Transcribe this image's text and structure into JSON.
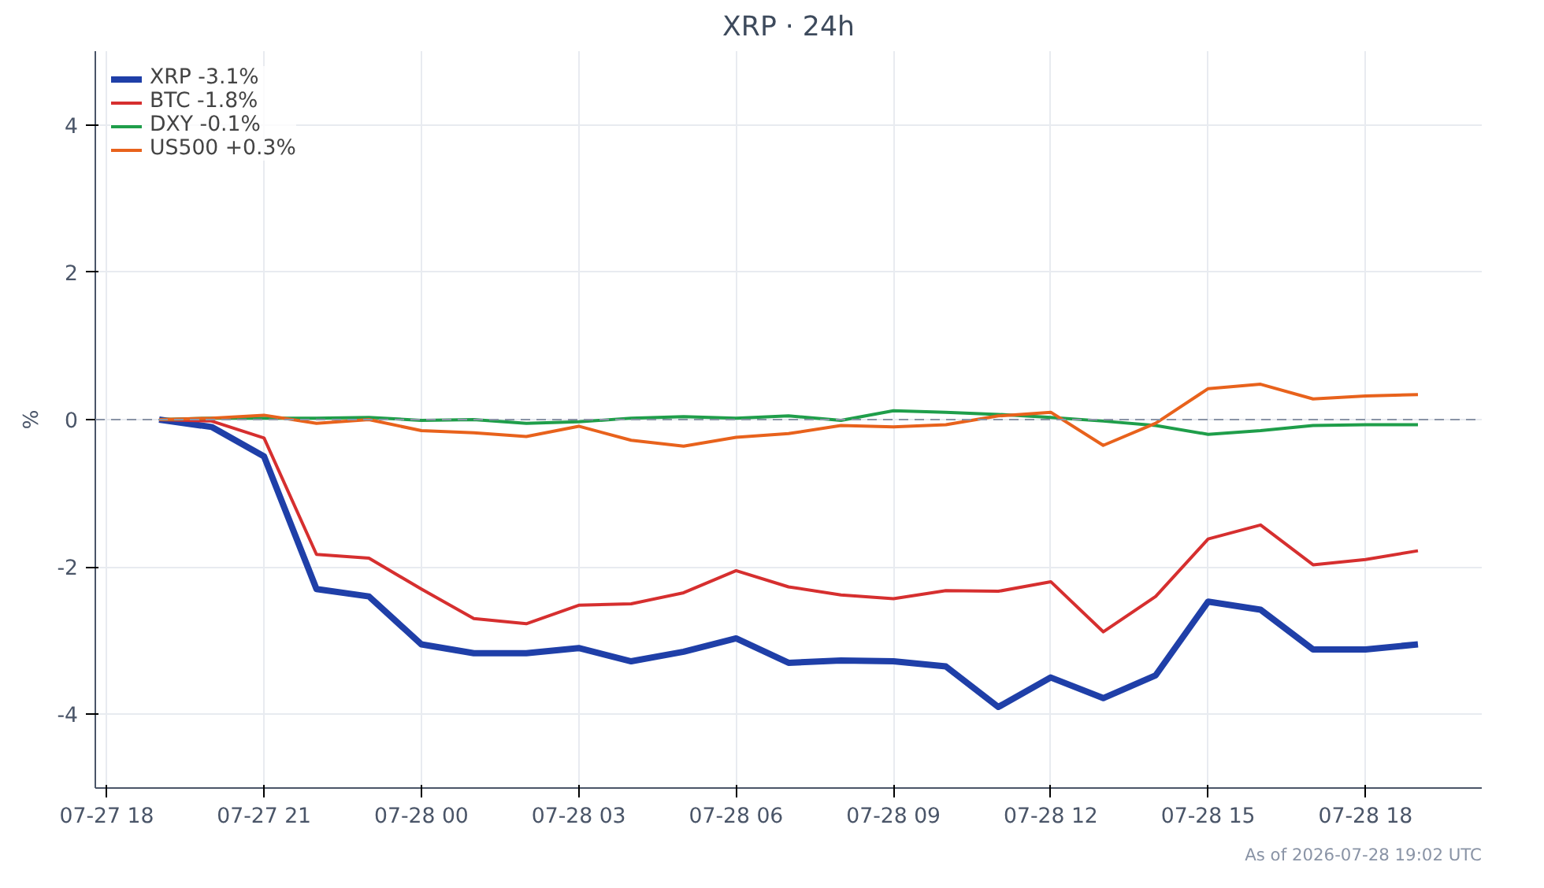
{
  "chart_data": {
    "type": "line",
    "title": "XRP · 24h",
    "ylabel": "%",
    "x": [
      "2026-07-27T19:00",
      "2026-07-27T20:00",
      "2026-07-27T21:00",
      "2026-07-27T22:00",
      "2026-07-27T23:00",
      "2026-07-28T00:00",
      "2026-07-28T01:00",
      "2026-07-28T02:00",
      "2026-07-28T03:00",
      "2026-07-28T04:00",
      "2026-07-28T05:00",
      "2026-07-28T06:00",
      "2026-07-28T07:00",
      "2026-07-28T08:00",
      "2026-07-28T09:00",
      "2026-07-28T10:00",
      "2026-07-28T11:00",
      "2026-07-28T12:00",
      "2026-07-28T13:00",
      "2026-07-28T14:00",
      "2026-07-28T15:00",
      "2026-07-28T16:00",
      "2026-07-28T17:00",
      "2026-07-28T18:00",
      "2026-07-28T19:00"
    ],
    "series": [
      {
        "name": "XRP -3.1%",
        "color": "#1f3fa8",
        "values": [
          0,
          -0.1,
          -0.5,
          -2.3,
          -2.4,
          -3.05,
          -3.17,
          -3.17,
          -3.1,
          -3.28,
          -3.15,
          -2.97,
          -3.3,
          -3.27,
          -3.28,
          -3.35,
          -3.9,
          -3.5,
          -3.78,
          -3.47,
          -2.47,
          -2.58,
          -3.12,
          -3.12,
          -3.05
        ]
      },
      {
        "name": "BTC -1.8%",
        "color": "#d62f2f",
        "values": [
          0,
          -0.02,
          -0.25,
          -1.83,
          -1.88,
          -2.3,
          -2.7,
          -2.77,
          -2.52,
          -2.5,
          -2.35,
          -2.05,
          -2.27,
          -2.38,
          -2.43,
          -2.32,
          -2.33,
          -2.2,
          -2.88,
          -2.4,
          -1.62,
          -1.43,
          -1.97,
          -1.9,
          -1.78
        ]
      },
      {
        "name": "DXY -0.1%",
        "color": "#1f9e4a",
        "values": [
          0,
          0.02,
          0.02,
          0.02,
          0.03,
          -0.01,
          0,
          -0.05,
          -0.03,
          0.02,
          0.04,
          0.02,
          0.05,
          -0.01,
          0.12,
          0.1,
          0.07,
          0.03,
          -0.02,
          -0.08,
          -0.2,
          -0.15,
          -0.08,
          -0.07,
          -0.07
        ]
      },
      {
        "name": "US500 +0.3%",
        "color": "#e8621c",
        "values": [
          0,
          0.02,
          0.06,
          -0.05,
          0,
          -0.15,
          -0.18,
          -0.23,
          -0.09,
          -0.28,
          -0.36,
          -0.24,
          -0.19,
          -0.08,
          -0.1,
          -0.07,
          0.05,
          0.1,
          -0.35,
          -0.05,
          0.42,
          0.48,
          0.28,
          0.32,
          0.34
        ]
      }
    ],
    "xlim": [
      "2026-07-27T17:47",
      "2026-07-28T20:13"
    ],
    "xticks": [
      {
        "value": "2026-07-27T18:00",
        "label": "07-27 18"
      },
      {
        "value": "2026-07-27T21:00",
        "label": "07-27 21"
      },
      {
        "value": "2026-07-28T00:00",
        "label": "07-28 00"
      },
      {
        "value": "2026-07-28T03:00",
        "label": "07-28 03"
      },
      {
        "value": "2026-07-28T06:00",
        "label": "07-28 06"
      },
      {
        "value": "2026-07-28T09:00",
        "label": "07-28 09"
      },
      {
        "value": "2026-07-28T12:00",
        "label": "07-28 12"
      },
      {
        "value": "2026-07-28T15:00",
        "label": "07-28 15"
      },
      {
        "value": "2026-07-28T18:00",
        "label": "07-28 18"
      }
    ],
    "ylim": [
      -5,
      5
    ],
    "yticks": [
      -4,
      -2,
      0,
      2,
      4
    ],
    "ref_lines": [
      {
        "axis": "y",
        "value": 0,
        "color": "#8a94a6",
        "line_style": "dashed"
      }
    ],
    "grid": true,
    "legend": "top left",
    "line_style": "solid",
    "marker": "none",
    "annotations": [
      "As of 2026-07-28 19:02 UTC"
    ]
  }
}
